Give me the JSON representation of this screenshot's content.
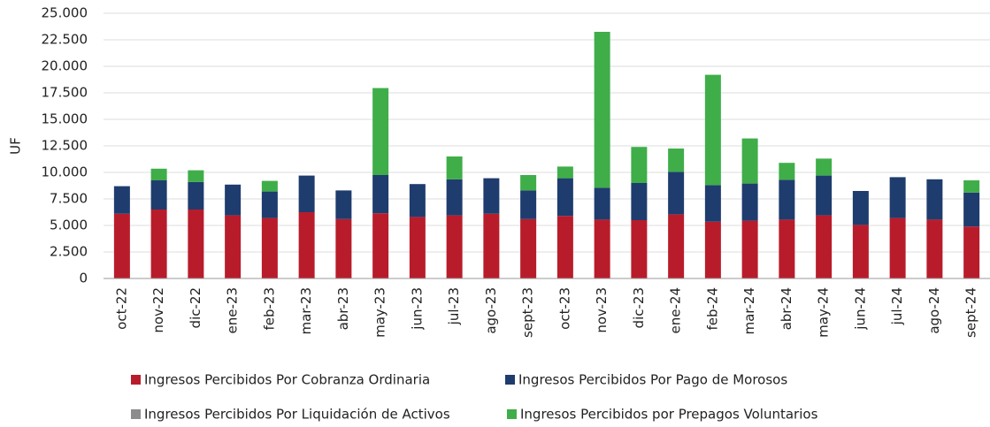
{
  "chart_data": {
    "type": "stacked_bar",
    "y_label": "UF",
    "categories": [
      "oct-22",
      "nov-22",
      "dic-22",
      "ene-23",
      "feb-23",
      "mar-23",
      "abr-23",
      "may-23",
      "jun-23",
      "jul-23",
      "ago-23",
      "sept-23",
      "oct-23",
      "nov-23",
      "dic-23",
      "ene-24",
      "feb-24",
      "mar-24",
      "abr-24",
      "may-24",
      "jun-24",
      "jul-24",
      "ago-24",
      "sept-24"
    ],
    "series": [
      {
        "name": "Ingresos Percibidos Por Cobranza Ordinaria",
        "color": "#b81c2b",
        "values": [
          6100,
          6500,
          6500,
          5950,
          5700,
          6250,
          5600,
          6150,
          5800,
          5950,
          6100,
          5600,
          5900,
          5550,
          5500,
          6050,
          5350,
          5450,
          5550,
          5950,
          5050,
          5700,
          5550,
          4900
        ]
      },
      {
        "name": "Ingresos Percibidos Por Pago de Morosos",
        "color": "#1f3c6e",
        "values": [
          2600,
          2750,
          2600,
          2900,
          2500,
          3450,
          2700,
          3600,
          3100,
          3400,
          3350,
          2700,
          3550,
          3000,
          3500,
          4000,
          3450,
          3500,
          3750,
          3750,
          3200,
          3850,
          3800,
          3200
        ]
      },
      {
        "name": "Ingresos Percibidos Por Liquidación de Activos",
        "color": "#8c8c8c",
        "values": [
          0,
          0,
          0,
          0,
          0,
          0,
          0,
          0,
          0,
          0,
          0,
          0,
          0,
          0,
          0,
          0,
          0,
          0,
          0,
          0,
          0,
          0,
          0,
          0
        ]
      },
      {
        "name": "Ingresos Percibidos por Prepagos Voluntarios",
        "color": "#3fae49",
        "values": [
          0,
          1100,
          1100,
          0,
          1000,
          0,
          0,
          8200,
          0,
          2150,
          0,
          1450,
          1100,
          14700,
          3400,
          2200,
          10400,
          4250,
          1600,
          1600,
          0,
          0,
          0,
          1150
        ]
      }
    ],
    "ylim": [
      0,
      25000
    ],
    "yticks": [
      0,
      {
        "value": 2500,
        "label": "2.500"
      },
      {
        "value": 5000,
        "label": "5.000"
      },
      {
        "value": 7500,
        "label": "7.500"
      },
      {
        "value": 10000,
        "label": "10.000"
      },
      {
        "value": 12500,
        "label": "12.500"
      },
      {
        "value": 15000,
        "label": "15.000"
      },
      {
        "value": 17500,
        "label": "17.500"
      },
      {
        "value": 20000,
        "label": "20.000"
      },
      {
        "value": 22500,
        "label": "22.500"
      },
      {
        "value": 25000,
        "label": "25.000"
      }
    ],
    "grid": true,
    "legend": "bottom"
  }
}
